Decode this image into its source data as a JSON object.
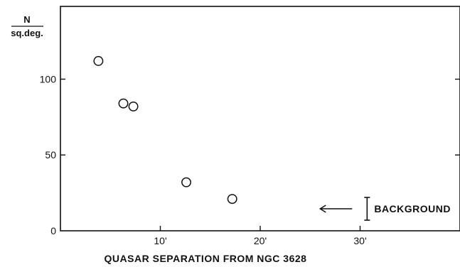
{
  "chart_data": {
    "type": "scatter",
    "ylabel_top": "N",
    "ylabel_bottom": "sq.deg.",
    "xlabel": "QUASAR SEPARATION FROM NGC 3628",
    "xlim": [
      0,
      40
    ],
    "ylim": [
      0,
      148
    ],
    "xticks": [
      {
        "value": 10,
        "label": "10'"
      },
      {
        "value": 20,
        "label": "20'"
      },
      {
        "value": 30,
        "label": "30'"
      }
    ],
    "yticks": [
      {
        "value": 0,
        "label": "0"
      },
      {
        "value": 50,
        "label": "50"
      },
      {
        "value": 100,
        "label": "100"
      }
    ],
    "points": [
      {
        "x": 3.8,
        "y": 112
      },
      {
        "x": 6.3,
        "y": 84
      },
      {
        "x": 7.3,
        "y": 82
      },
      {
        "x": 12.6,
        "y": 32
      },
      {
        "x": 17.2,
        "y": 21
      }
    ],
    "background": {
      "label": "BACKGROUND",
      "x": 30.7,
      "y_low": 7,
      "y_high": 22,
      "arrow_from_x": 29.2,
      "arrow_to_x": 26.0,
      "arrow_y": 14.5
    }
  }
}
